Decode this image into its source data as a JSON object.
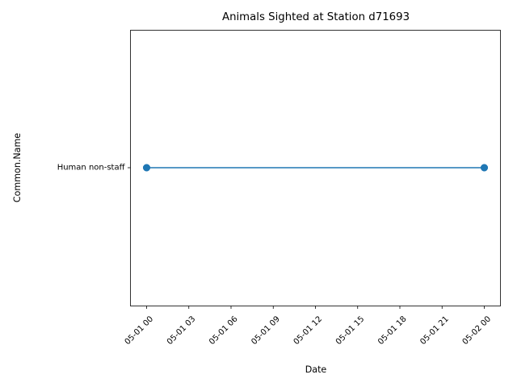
{
  "chart_data": {
    "type": "line",
    "title": "Animals Sighted at Station d71693",
    "xlabel": "Date",
    "ylabel": "Common.Name",
    "x_ticks": [
      "05-01 00",
      "05-01 03",
      "05-01 06",
      "05-01 09",
      "05-01 12",
      "05-01 15",
      "05-01 18",
      "05-01 21",
      "05-02 00"
    ],
    "y_categories": [
      "Human non-staff"
    ],
    "xlim": [
      "05-01 00",
      "05-02 00"
    ],
    "series": [
      {
        "x": [
          "05-01 00",
          "05-01 00",
          "05-02 00",
          "05-02 00"
        ],
        "y": [
          "Human non-staff",
          "Human non-staff",
          "Human non-staff",
          "Human non-staff"
        ]
      }
    ],
    "marker": "circle",
    "grid": false,
    "colors": {
      "series": "#1f77b4"
    }
  }
}
